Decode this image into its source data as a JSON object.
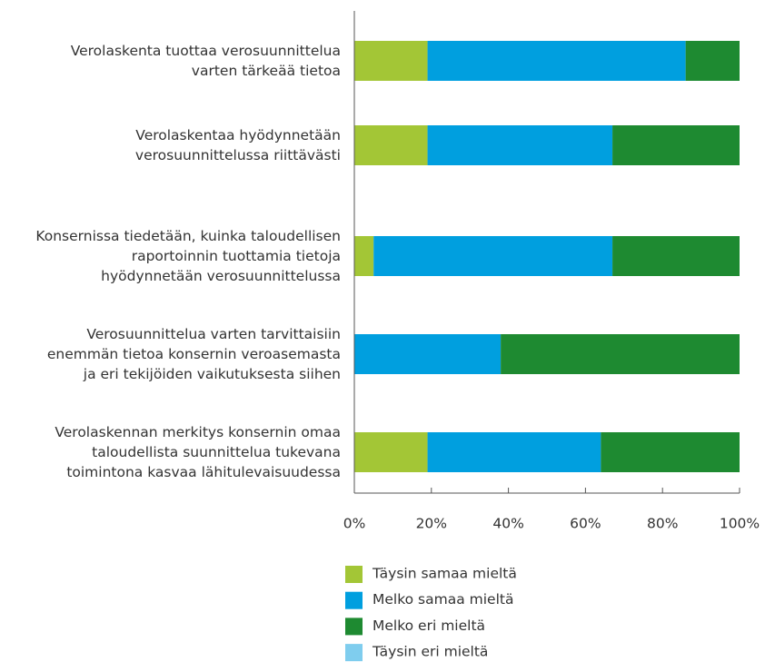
{
  "chart_data": {
    "type": "stacked-bar-horizontal",
    "categories": [
      "Verolaskenta tuottaa verosuunnittelua\nvarten tärkeää tietoa",
      "Verolaskentaa hyödynnetään\nverosuunnittelussa riittävästi",
      "Konsernissa tiedetään, kuinka taloudellisen\nraportoinnin tuottamia tietoja\nhyödynnetään verosuunnittelussa",
      "Verosuunnittelua varten tarvittaisiin\nenemmän tietoa konsernin veroasemasta\nja eri tekijöiden vaikutuksesta siihen",
      "Verolaskennan merkitys konsernin omaa\ntaloudellista suunnittelua tukevana\ntoimintona kasvaa lähitulevaisuudessa"
    ],
    "series": [
      {
        "name": "Täysin samaa mieltä",
        "color": "#a3c636",
        "values": [
          19,
          19,
          5,
          0,
          19
        ]
      },
      {
        "name": "Melko samaa mieltä",
        "color": "#009fdf",
        "values": [
          67,
          48,
          62,
          38,
          45
        ]
      },
      {
        "name": "Melko eri mieltä",
        "color": "#1e8a31",
        "values": [
          14,
          33,
          33,
          62,
          36
        ]
      },
      {
        "name": "Täysin eri mieltä",
        "color": "#7fcdee",
        "values": [
          0,
          0,
          0,
          0,
          0
        ]
      }
    ],
    "xlim": [
      0,
      100
    ],
    "xticks": [
      {
        "value": 0,
        "label": "0%"
      },
      {
        "value": 20,
        "label": "20%"
      },
      {
        "value": 40,
        "label": "40%"
      },
      {
        "value": 60,
        "label": "60%"
      },
      {
        "value": 80,
        "label": "80%"
      },
      {
        "value": 100,
        "label": "100%"
      }
    ]
  }
}
